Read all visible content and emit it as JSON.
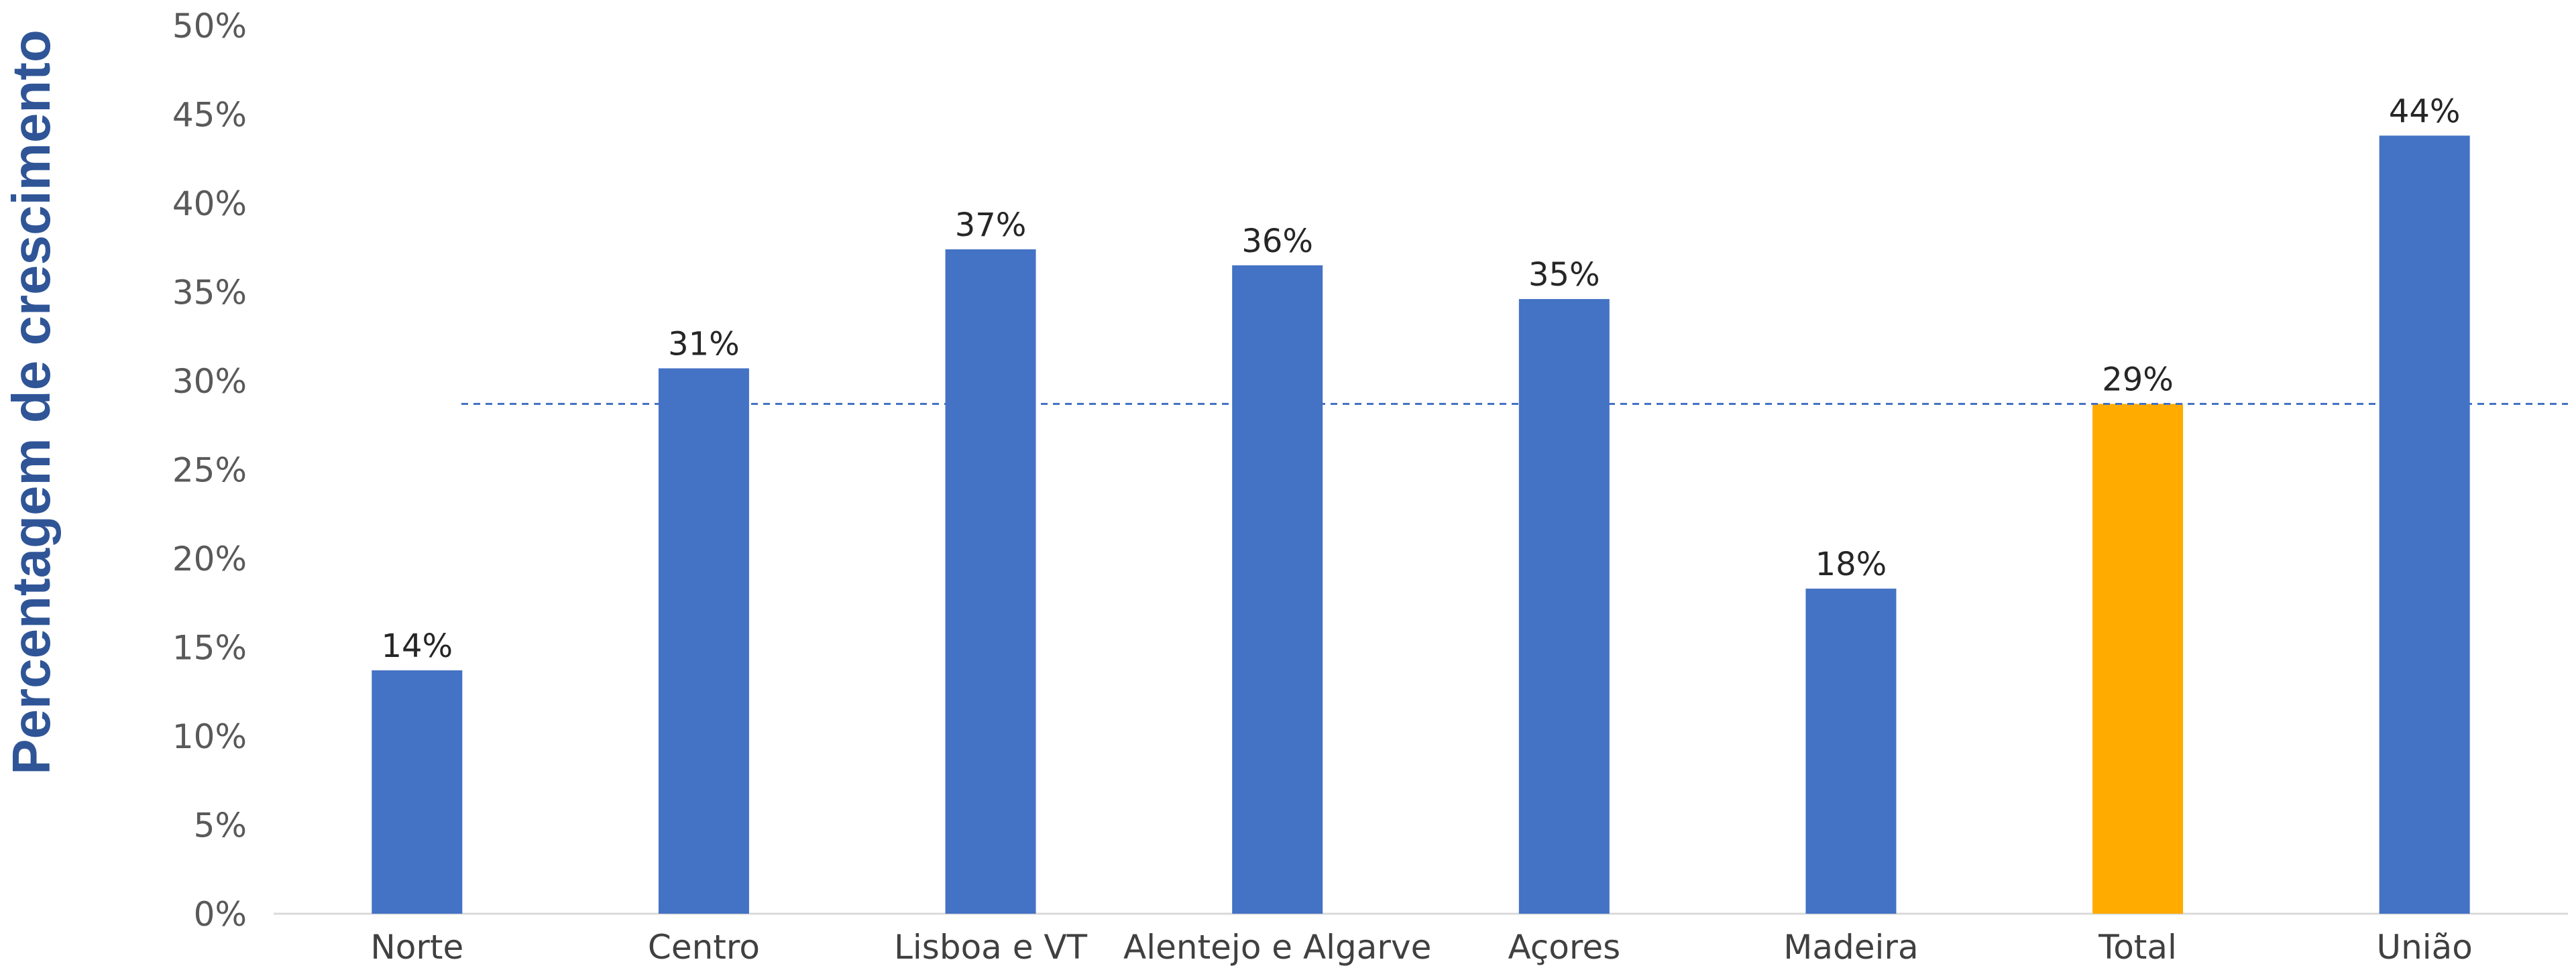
{
  "chart_data": {
    "type": "bar",
    "title": "",
    "xlabel": "",
    "ylabel": "Percentagem de crescimento",
    "categories": [
      "Norte",
      "Centro",
      "Lisboa e VT",
      "Alentejo e Algarve",
      "Açores",
      "Madeira",
      "Total",
      "União"
    ],
    "values": [
      13.7,
      30.7,
      37.4,
      36.5,
      34.6,
      18.3,
      28.7,
      43.8
    ],
    "data_labels": [
      "14%",
      "31%",
      "37%",
      "36%",
      "35%",
      "18%",
      "29%",
      "44%"
    ],
    "ylim": [
      0,
      50
    ],
    "yticks": [
      0,
      5,
      10,
      15,
      20,
      25,
      30,
      35,
      40,
      45,
      50
    ],
    "ytick_labels": [
      "0%",
      "5%",
      "10%",
      "15%",
      "20%",
      "25%",
      "30%",
      "35%",
      "40%",
      "45%",
      "50%"
    ],
    "reference_line": {
      "value": 28.7,
      "style": "dashed",
      "color": "#4472C4"
    },
    "bar_color": "#4472C4",
    "highlight": {
      "category": "Total",
      "color": "#FFAB00"
    },
    "grid": false,
    "legend": "none"
  }
}
